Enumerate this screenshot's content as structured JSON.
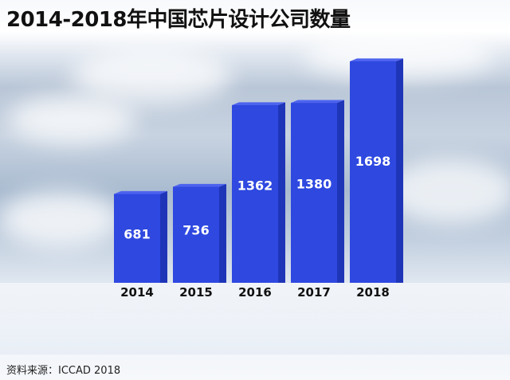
{
  "title": "2014-2018年中国芯片设计公司数量",
  "source": "资料来源：ICCAD 2018",
  "colors": {
    "bar_front": "#2e48e0",
    "bar_side": "#1f35b8",
    "bar_top": "#4d63ee",
    "label": "#ffffff",
    "tick": "#111111"
  },
  "chart_data": {
    "type": "bar",
    "categories": [
      "2014",
      "2015",
      "2016",
      "2017",
      "2018"
    ],
    "values": [
      681,
      736,
      1362,
      1380,
      1698
    ],
    "title": "2014-2018年中国芯片设计公司数量",
    "xlabel": "",
    "ylabel": "",
    "ylim": [
      0,
      1698
    ],
    "grid": false,
    "legend": "none"
  }
}
